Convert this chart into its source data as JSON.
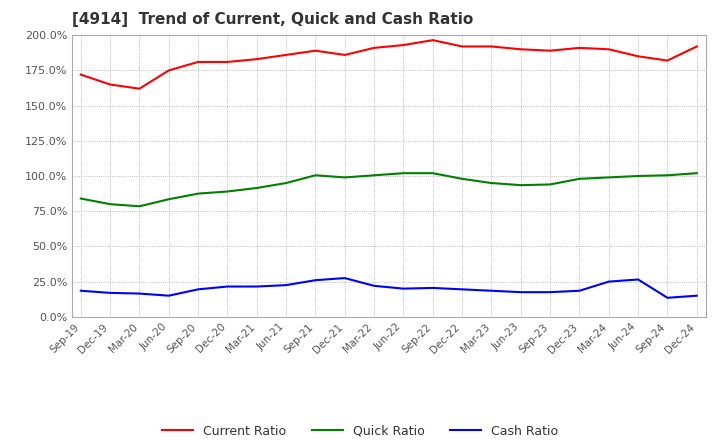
{
  "title": "[4914]  Trend of Current, Quick and Cash Ratio",
  "x_labels": [
    "Sep-19",
    "Dec-19",
    "Mar-20",
    "Jun-20",
    "Sep-20",
    "Dec-20",
    "Mar-21",
    "Jun-21",
    "Sep-21",
    "Dec-21",
    "Mar-22",
    "Jun-22",
    "Sep-22",
    "Dec-22",
    "Mar-23",
    "Jun-23",
    "Sep-23",
    "Dec-23",
    "Mar-24",
    "Jun-24",
    "Sep-24",
    "Dec-24"
  ],
  "current_ratio": [
    172.0,
    165.0,
    162.0,
    175.0,
    181.0,
    181.0,
    183.0,
    186.0,
    189.0,
    186.0,
    191.0,
    193.0,
    196.5,
    192.0,
    192.0,
    190.0,
    189.0,
    191.0,
    190.0,
    185.0,
    182.0,
    192.0
  ],
  "quick_ratio": [
    84.0,
    80.0,
    78.5,
    83.5,
    87.5,
    89.0,
    91.5,
    95.0,
    100.5,
    99.0,
    100.5,
    102.0,
    102.0,
    98.0,
    95.0,
    93.5,
    94.0,
    98.0,
    99.0,
    100.0,
    100.5,
    102.0
  ],
  "cash_ratio": [
    18.5,
    17.0,
    16.5,
    15.0,
    19.5,
    21.5,
    21.5,
    22.5,
    26.0,
    27.5,
    22.0,
    20.0,
    20.5,
    19.5,
    18.5,
    17.5,
    17.5,
    18.5,
    25.0,
    26.5,
    13.5,
    15.0
  ],
  "current_color": "#ff0000",
  "quick_color": "#008000",
  "cash_color": "#0000ff",
  "ylim": [
    0,
    200
  ],
  "yticks": [
    0,
    25,
    50,
    75,
    100,
    125,
    150,
    175,
    200
  ],
  "background_color": "#ffffff",
  "grid_color": "#aaaaaa",
  "title_fontsize": 11
}
